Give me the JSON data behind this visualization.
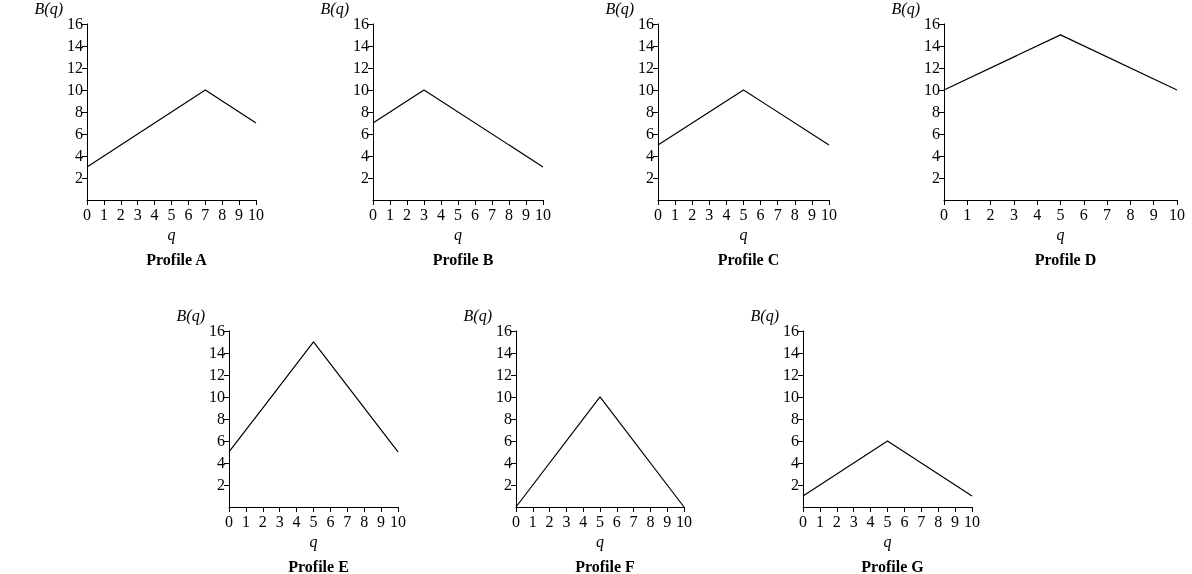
{
  "chart_data": [
    {
      "type": "line",
      "title": "Profile A",
      "xlabel": "q",
      "ylabel": "B(q)",
      "series": [
        {
          "color": "#000000",
          "x": [
            0,
            7,
            10
          ],
          "values": [
            3,
            10,
            7
          ]
        }
      ],
      "xlim": [
        0,
        10
      ],
      "xticks": [
        0,
        1,
        2,
        3,
        4,
        5,
        6,
        7,
        8,
        9,
        10
      ],
      "ylim": [
        0,
        16
      ],
      "yticks": [
        2,
        4,
        6,
        8,
        10,
        12,
        14,
        16
      ],
      "grid": false,
      "marker": "none",
      "line_style": "solid"
    },
    {
      "type": "line",
      "title": "Profile B",
      "xlabel": "q",
      "ylabel": "B(q)",
      "series": [
        {
          "color": "#000000",
          "x": [
            0,
            3,
            10
          ],
          "values": [
            7,
            10,
            3
          ]
        }
      ],
      "xlim": [
        0,
        10
      ],
      "xticks": [
        0,
        1,
        2,
        3,
        4,
        5,
        6,
        7,
        8,
        9,
        10
      ],
      "ylim": [
        0,
        16
      ],
      "yticks": [
        2,
        4,
        6,
        8,
        10,
        12,
        14,
        16
      ],
      "grid": false,
      "marker": "none",
      "line_style": "solid"
    },
    {
      "type": "line",
      "title": "Profile C",
      "xlabel": "q",
      "ylabel": "B(q)",
      "series": [
        {
          "color": "#000000",
          "x": [
            0,
            5,
            10
          ],
          "values": [
            5,
            10,
            5
          ]
        }
      ],
      "xlim": [
        0,
        10
      ],
      "xticks": [
        0,
        1,
        2,
        3,
        4,
        5,
        6,
        7,
        8,
        9,
        10
      ],
      "ylim": [
        0,
        16
      ],
      "yticks": [
        2,
        4,
        6,
        8,
        10,
        12,
        14,
        16
      ],
      "grid": false,
      "marker": "none",
      "line_style": "solid"
    },
    {
      "type": "line",
      "title": "Profile D",
      "xlabel": "q",
      "ylabel": "B(q)",
      "series": [
        {
          "color": "#000000",
          "x": [
            0,
            5,
            10
          ],
          "values": [
            10,
            15,
            10
          ]
        }
      ],
      "xlim": [
        0,
        10
      ],
      "xticks": [
        0,
        1,
        2,
        3,
        4,
        5,
        6,
        7,
        8,
        9,
        10
      ],
      "ylim": [
        0,
        16
      ],
      "yticks": [
        2,
        4,
        6,
        8,
        10,
        12,
        14,
        16
      ],
      "grid": false,
      "marker": "none",
      "line_style": "solid"
    },
    {
      "type": "line",
      "title": "Profile E",
      "xlabel": "q",
      "ylabel": "B(q)",
      "series": [
        {
          "color": "#000000",
          "x": [
            0,
            5,
            10
          ],
          "values": [
            5,
            15,
            5
          ]
        }
      ],
      "xlim": [
        0,
        10
      ],
      "xticks": [
        0,
        1,
        2,
        3,
        4,
        5,
        6,
        7,
        8,
        9,
        10
      ],
      "ylim": [
        0,
        16
      ],
      "yticks": [
        2,
        4,
        6,
        8,
        10,
        12,
        14,
        16
      ],
      "grid": false,
      "marker": "none",
      "line_style": "solid"
    },
    {
      "type": "line",
      "title": "Profile F",
      "xlabel": "q",
      "ylabel": "B(q)",
      "series": [
        {
          "color": "#000000",
          "x": [
            0,
            5,
            10
          ],
          "values": [
            0,
            10,
            0
          ]
        }
      ],
      "xlim": [
        0,
        10
      ],
      "xticks": [
        0,
        1,
        2,
        3,
        4,
        5,
        6,
        7,
        8,
        9,
        10
      ],
      "ylim": [
        0,
        16
      ],
      "yticks": [
        2,
        4,
        6,
        8,
        10,
        12,
        14,
        16
      ],
      "grid": false,
      "marker": "none",
      "line_style": "solid"
    },
    {
      "type": "line",
      "title": "Profile G",
      "xlabel": "q",
      "ylabel": "B(q)",
      "series": [
        {
          "color": "#000000",
          "x": [
            0,
            5,
            10
          ],
          "values": [
            1,
            6,
            1
          ]
        }
      ],
      "xlim": [
        0,
        10
      ],
      "xticks": [
        0,
        1,
        2,
        3,
        4,
        5,
        6,
        7,
        8,
        9,
        10
      ],
      "ylim": [
        0,
        16
      ],
      "yticks": [
        2,
        4,
        6,
        8,
        10,
        12,
        14,
        16
      ],
      "grid": false,
      "marker": "none",
      "line_style": "solid"
    }
  ]
}
